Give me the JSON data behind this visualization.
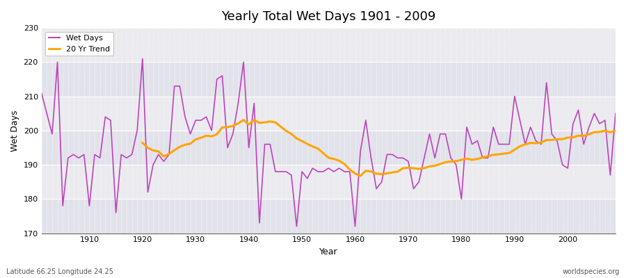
{
  "title": "Yearly Total Wet Days 1901 - 2009",
  "xlabel": "Year",
  "ylabel": "Wet Days",
  "lat_lon_label": "Latitude 66.25 Longitude 24.25",
  "watermark": "worldspecies.org",
  "xlim": [
    1901,
    2009
  ],
  "ylim": [
    170,
    230
  ],
  "yticks": [
    170,
    180,
    190,
    200,
    210,
    220,
    230
  ],
  "wet_days_color": "#BB44BB",
  "trend_color": "#FFA500",
  "bg_color_light": "#EAEAEE",
  "bg_color_dark": "#DDDDE4",
  "years": [
    1901,
    1902,
    1903,
    1904,
    1905,
    1906,
    1907,
    1908,
    1909,
    1910,
    1911,
    1912,
    1913,
    1914,
    1915,
    1916,
    1917,
    1918,
    1919,
    1920,
    1921,
    1922,
    1923,
    1924,
    1925,
    1926,
    1927,
    1928,
    1929,
    1930,
    1931,
    1932,
    1933,
    1934,
    1935,
    1936,
    1937,
    1938,
    1939,
    1940,
    1941,
    1942,
    1943,
    1944,
    1945,
    1946,
    1947,
    1948,
    1949,
    1950,
    1951,
    1952,
    1953,
    1954,
    1955,
    1956,
    1957,
    1958,
    1959,
    1960,
    1961,
    1962,
    1963,
    1964,
    1965,
    1966,
    1967,
    1968,
    1969,
    1970,
    1971,
    1972,
    1973,
    1974,
    1975,
    1976,
    1977,
    1978,
    1979,
    1980,
    1981,
    1982,
    1983,
    1984,
    1985,
    1986,
    1987,
    1988,
    1989,
    1990,
    1991,
    1992,
    1993,
    1994,
    1995,
    1996,
    1997,
    1998,
    1999,
    2000,
    2001,
    2002,
    2003,
    2004,
    2005,
    2006,
    2007,
    2008,
    2009
  ],
  "wet_days": [
    211,
    205,
    199,
    220,
    178,
    192,
    193,
    192,
    193,
    178,
    193,
    192,
    204,
    203,
    176,
    193,
    192,
    193,
    200,
    221,
    182,
    190,
    193,
    191,
    193,
    213,
    213,
    204,
    199,
    203,
    203,
    204,
    200,
    215,
    216,
    195,
    199,
    208,
    220,
    195,
    208,
    173,
    196,
    196,
    188,
    188,
    188,
    187,
    172,
    188,
    186,
    189,
    188,
    188,
    189,
    188,
    189,
    188,
    188,
    172,
    194,
    203,
    192,
    183,
    185,
    193,
    193,
    192,
    192,
    191,
    183,
    185,
    192,
    199,
    192,
    199,
    199,
    192,
    190,
    180,
    201,
    196,
    197,
    192,
    192,
    201,
    196,
    196,
    196,
    210,
    203,
    196,
    201,
    197,
    196,
    214,
    199,
    197,
    190,
    189,
    202,
    206,
    196,
    201,
    205,
    202,
    203,
    187,
    205
  ],
  "trend_window": 20,
  "band_yticks": [
    170,
    180,
    190,
    200,
    210,
    220,
    230
  ],
  "band_colors": [
    "#E2E2EA",
    "#EAEAEF",
    "#E2E2EA",
    "#EAEAEF",
    "#E2E2EA",
    "#EAEAEF"
  ]
}
